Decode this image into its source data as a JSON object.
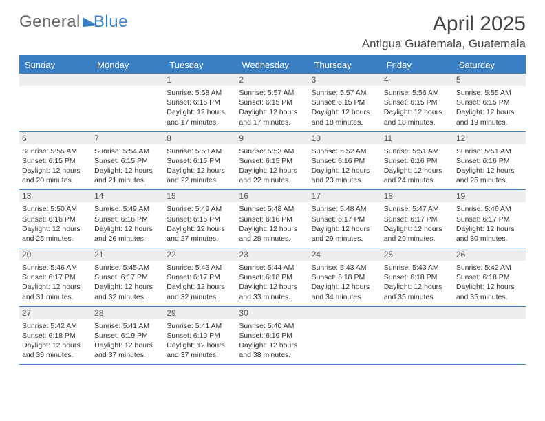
{
  "logo": {
    "general": "General",
    "blue": "Blue"
  },
  "title": "April 2025",
  "subtitle": "Antigua Guatemala, Guatemala",
  "colors": {
    "accent": "#3a7fc4",
    "band": "#eceeef",
    "text": "#333333",
    "bg": "#ffffff"
  },
  "dows": [
    "Sunday",
    "Monday",
    "Tuesday",
    "Wednesday",
    "Thursday",
    "Friday",
    "Saturday"
  ],
  "weeks": [
    [
      {
        "n": "",
        "sr": "",
        "ss": "",
        "dl": ""
      },
      {
        "n": "",
        "sr": "",
        "ss": "",
        "dl": ""
      },
      {
        "n": "1",
        "sr": "Sunrise: 5:58 AM",
        "ss": "Sunset: 6:15 PM",
        "dl": "Daylight: 12 hours and 17 minutes."
      },
      {
        "n": "2",
        "sr": "Sunrise: 5:57 AM",
        "ss": "Sunset: 6:15 PM",
        "dl": "Daylight: 12 hours and 17 minutes."
      },
      {
        "n": "3",
        "sr": "Sunrise: 5:57 AM",
        "ss": "Sunset: 6:15 PM",
        "dl": "Daylight: 12 hours and 18 minutes."
      },
      {
        "n": "4",
        "sr": "Sunrise: 5:56 AM",
        "ss": "Sunset: 6:15 PM",
        "dl": "Daylight: 12 hours and 18 minutes."
      },
      {
        "n": "5",
        "sr": "Sunrise: 5:55 AM",
        "ss": "Sunset: 6:15 PM",
        "dl": "Daylight: 12 hours and 19 minutes."
      }
    ],
    [
      {
        "n": "6",
        "sr": "Sunrise: 5:55 AM",
        "ss": "Sunset: 6:15 PM",
        "dl": "Daylight: 12 hours and 20 minutes."
      },
      {
        "n": "7",
        "sr": "Sunrise: 5:54 AM",
        "ss": "Sunset: 6:15 PM",
        "dl": "Daylight: 12 hours and 21 minutes."
      },
      {
        "n": "8",
        "sr": "Sunrise: 5:53 AM",
        "ss": "Sunset: 6:15 PM",
        "dl": "Daylight: 12 hours and 22 minutes."
      },
      {
        "n": "9",
        "sr": "Sunrise: 5:53 AM",
        "ss": "Sunset: 6:15 PM",
        "dl": "Daylight: 12 hours and 22 minutes."
      },
      {
        "n": "10",
        "sr": "Sunrise: 5:52 AM",
        "ss": "Sunset: 6:16 PM",
        "dl": "Daylight: 12 hours and 23 minutes."
      },
      {
        "n": "11",
        "sr": "Sunrise: 5:51 AM",
        "ss": "Sunset: 6:16 PM",
        "dl": "Daylight: 12 hours and 24 minutes."
      },
      {
        "n": "12",
        "sr": "Sunrise: 5:51 AM",
        "ss": "Sunset: 6:16 PM",
        "dl": "Daylight: 12 hours and 25 minutes."
      }
    ],
    [
      {
        "n": "13",
        "sr": "Sunrise: 5:50 AM",
        "ss": "Sunset: 6:16 PM",
        "dl": "Daylight: 12 hours and 25 minutes."
      },
      {
        "n": "14",
        "sr": "Sunrise: 5:49 AM",
        "ss": "Sunset: 6:16 PM",
        "dl": "Daylight: 12 hours and 26 minutes."
      },
      {
        "n": "15",
        "sr": "Sunrise: 5:49 AM",
        "ss": "Sunset: 6:16 PM",
        "dl": "Daylight: 12 hours and 27 minutes."
      },
      {
        "n": "16",
        "sr": "Sunrise: 5:48 AM",
        "ss": "Sunset: 6:16 PM",
        "dl": "Daylight: 12 hours and 28 minutes."
      },
      {
        "n": "17",
        "sr": "Sunrise: 5:48 AM",
        "ss": "Sunset: 6:17 PM",
        "dl": "Daylight: 12 hours and 29 minutes."
      },
      {
        "n": "18",
        "sr": "Sunrise: 5:47 AM",
        "ss": "Sunset: 6:17 PM",
        "dl": "Daylight: 12 hours and 29 minutes."
      },
      {
        "n": "19",
        "sr": "Sunrise: 5:46 AM",
        "ss": "Sunset: 6:17 PM",
        "dl": "Daylight: 12 hours and 30 minutes."
      }
    ],
    [
      {
        "n": "20",
        "sr": "Sunrise: 5:46 AM",
        "ss": "Sunset: 6:17 PM",
        "dl": "Daylight: 12 hours and 31 minutes."
      },
      {
        "n": "21",
        "sr": "Sunrise: 5:45 AM",
        "ss": "Sunset: 6:17 PM",
        "dl": "Daylight: 12 hours and 32 minutes."
      },
      {
        "n": "22",
        "sr": "Sunrise: 5:45 AM",
        "ss": "Sunset: 6:17 PM",
        "dl": "Daylight: 12 hours and 32 minutes."
      },
      {
        "n": "23",
        "sr": "Sunrise: 5:44 AM",
        "ss": "Sunset: 6:18 PM",
        "dl": "Daylight: 12 hours and 33 minutes."
      },
      {
        "n": "24",
        "sr": "Sunrise: 5:43 AM",
        "ss": "Sunset: 6:18 PM",
        "dl": "Daylight: 12 hours and 34 minutes."
      },
      {
        "n": "25",
        "sr": "Sunrise: 5:43 AM",
        "ss": "Sunset: 6:18 PM",
        "dl": "Daylight: 12 hours and 35 minutes."
      },
      {
        "n": "26",
        "sr": "Sunrise: 5:42 AM",
        "ss": "Sunset: 6:18 PM",
        "dl": "Daylight: 12 hours and 35 minutes."
      }
    ],
    [
      {
        "n": "27",
        "sr": "Sunrise: 5:42 AM",
        "ss": "Sunset: 6:18 PM",
        "dl": "Daylight: 12 hours and 36 minutes."
      },
      {
        "n": "28",
        "sr": "Sunrise: 5:41 AM",
        "ss": "Sunset: 6:19 PM",
        "dl": "Daylight: 12 hours and 37 minutes."
      },
      {
        "n": "29",
        "sr": "Sunrise: 5:41 AM",
        "ss": "Sunset: 6:19 PM",
        "dl": "Daylight: 12 hours and 37 minutes."
      },
      {
        "n": "30",
        "sr": "Sunrise: 5:40 AM",
        "ss": "Sunset: 6:19 PM",
        "dl": "Daylight: 12 hours and 38 minutes."
      },
      {
        "n": "",
        "sr": "",
        "ss": "",
        "dl": ""
      },
      {
        "n": "",
        "sr": "",
        "ss": "",
        "dl": ""
      },
      {
        "n": "",
        "sr": "",
        "ss": "",
        "dl": ""
      }
    ]
  ]
}
